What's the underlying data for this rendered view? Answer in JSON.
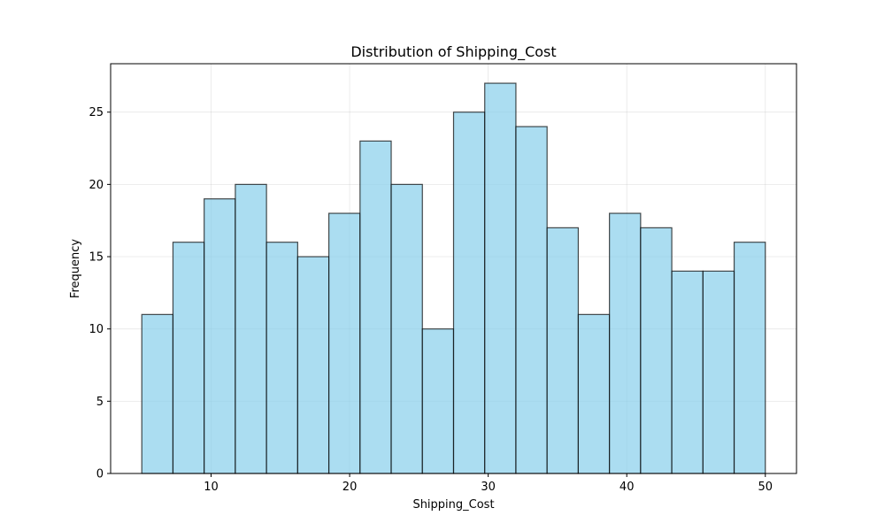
{
  "chart_data": {
    "type": "bar",
    "title": "Distribution of Shipping_Cost",
    "xlabel": "Shipping_Cost",
    "ylabel": "Frequency",
    "bins": [
      {
        "x0": 5.0,
        "x1": 7.25,
        "value": 11
      },
      {
        "x0": 7.25,
        "x1": 9.5,
        "value": 16
      },
      {
        "x0": 9.5,
        "x1": 11.75,
        "value": 19
      },
      {
        "x0": 11.75,
        "x1": 14.0,
        "value": 20
      },
      {
        "x0": 14.0,
        "x1": 16.25,
        "value": 16
      },
      {
        "x0": 16.25,
        "x1": 18.5,
        "value": 15
      },
      {
        "x0": 18.5,
        "x1": 20.75,
        "value": 18
      },
      {
        "x0": 20.75,
        "x1": 23.0,
        "value": 23
      },
      {
        "x0": 23.0,
        "x1": 25.25,
        "value": 20
      },
      {
        "x0": 25.25,
        "x1": 27.5,
        "value": 10
      },
      {
        "x0": 27.5,
        "x1": 29.75,
        "value": 25
      },
      {
        "x0": 29.75,
        "x1": 32.0,
        "value": 27
      },
      {
        "x0": 32.0,
        "x1": 34.25,
        "value": 24
      },
      {
        "x0": 34.25,
        "x1": 36.5,
        "value": 17
      },
      {
        "x0": 36.5,
        "x1": 38.75,
        "value": 11
      },
      {
        "x0": 38.75,
        "x1": 41.0,
        "value": 18
      },
      {
        "x0": 41.0,
        "x1": 43.25,
        "value": 17
      },
      {
        "x0": 43.25,
        "x1": 45.5,
        "value": 14
      },
      {
        "x0": 45.5,
        "x1": 47.75,
        "value": 14
      },
      {
        "x0": 47.75,
        "x1": 50.0,
        "value": 16
      }
    ],
    "xlim": [
      2.75,
      52.25
    ],
    "ylim": [
      0,
      28.35
    ],
    "xticks": [
      10,
      20,
      30,
      40,
      50
    ],
    "yticks": [
      0,
      5,
      10,
      15,
      20,
      25
    ],
    "grid": true,
    "colors": {
      "bar_fill": "#87ceeb",
      "bar_edge": "#000000",
      "grid": "#b0b0b0",
      "axis": "#000000"
    }
  }
}
